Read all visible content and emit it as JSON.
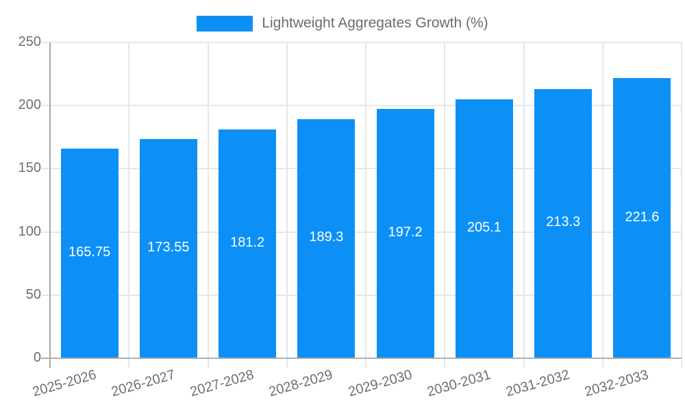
{
  "legend": {
    "label": "Lightweight Aggregates Growth (%)"
  },
  "colors": {
    "bar": "#0d90f5",
    "grid": "#e6e6e6",
    "axis": "#a8a8a8",
    "axis_text": "#6e6e6e",
    "value_label": "#ffffff",
    "legend_text": "#6b6b6b",
    "background": "#ffffff"
  },
  "chart_data": {
    "type": "bar",
    "title": "",
    "categories": [
      "2025-2026",
      "2026-2027",
      "2027-2028",
      "2028-2029",
      "2029-2030",
      "2030-2031",
      "2031-2032",
      "2032-2033"
    ],
    "series": [
      {
        "name": "Lightweight Aggregates Growth (%)",
        "values": [
          165.75,
          173.55,
          181.2,
          189.3,
          197.2,
          205.1,
          213.3,
          221.6
        ]
      }
    ],
    "bar_labels": [
      "165.75",
      "173.55",
      "181.2",
      "189.3",
      "197.2",
      "205.1",
      "213.3",
      "221.6"
    ],
    "xlabel": "",
    "ylabel": "",
    "ylim": [
      0,
      250
    ],
    "yticks": [
      0,
      50,
      100,
      150,
      200,
      250
    ],
    "grid": true,
    "legend_position": "top-center",
    "bar_label_position": "inside-center",
    "x_tick_rotation_deg": -16
  }
}
